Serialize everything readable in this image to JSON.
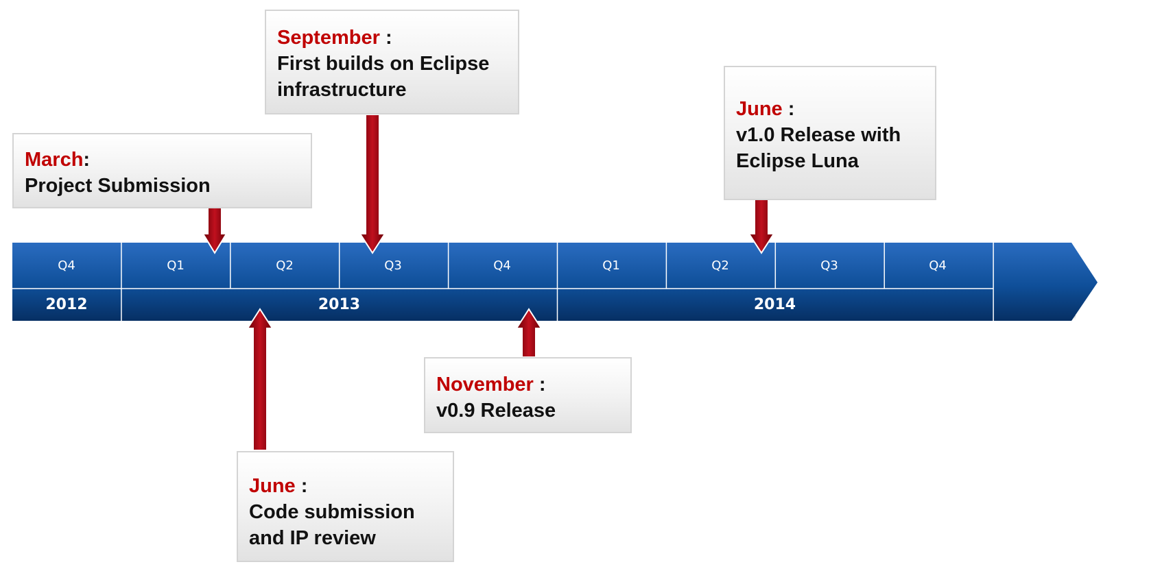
{
  "timeline": {
    "quarters": [
      {
        "label": "Q4"
      },
      {
        "label": "Q1"
      },
      {
        "label": "Q2"
      },
      {
        "label": "Q3"
      },
      {
        "label": "Q4"
      },
      {
        "label": "Q1"
      },
      {
        "label": "Q2"
      },
      {
        "label": "Q3"
      },
      {
        "label": "Q4"
      }
    ],
    "years": [
      {
        "label": "2012"
      },
      {
        "label": "2013"
      },
      {
        "label": "2014"
      }
    ],
    "colors": {
      "band_top": "#2a6cc0",
      "band_bottom": "#08407f",
      "divider": "#ffffff",
      "arrow_red": "#a00010",
      "month_red": "#c00000"
    }
  },
  "milestones": [
    {
      "month": "March",
      "separator": ":",
      "description": "Project Submission"
    },
    {
      "month": "September",
      "separator": " :",
      "description": "First builds on Eclipse infrastructure"
    },
    {
      "month": "June",
      "separator": " :",
      "description": "v1.0 Release with Eclipse Luna"
    },
    {
      "month": "November",
      "separator": " :",
      "description": "v0.9 Release"
    },
    {
      "month": "June",
      "separator": " :",
      "description": "Code submission and IP review"
    }
  ]
}
